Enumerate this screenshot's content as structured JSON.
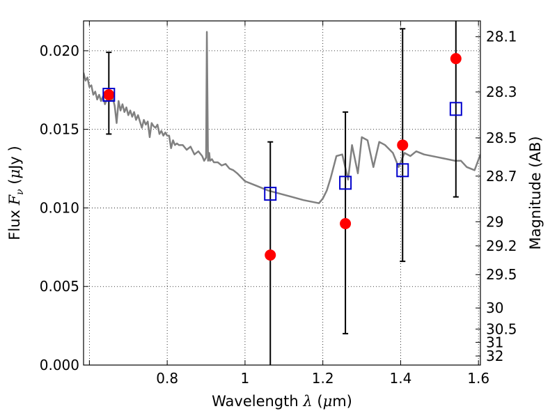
{
  "chart_data": {
    "type": "scatter",
    "xlabel": "Wavelength",
    "xlabel_symbol": "λ",
    "xlabel_unit_open": " (",
    "xlabel_unit_mu": "μ",
    "xlabel_unit_close": "m)",
    "ylabel_prefix": "Flux ",
    "ylabel_symbol": "F",
    "ylabel_sub": "ν",
    "ylabel_unit_open": " (",
    "ylabel_unit_mu": "μ",
    "ylabel_unit_close": "Jy )",
    "y2label": "Magnitude (AB)",
    "xlim": [
      0.585,
      1.605
    ],
    "ylim": [
      0.0,
      0.0219
    ],
    "x_ticks": [
      {
        "value": 0.6,
        "label": ""
      },
      {
        "value": 0.8,
        "label": "0.8"
      },
      {
        "value": 1.0,
        "label": "1"
      },
      {
        "value": 1.2,
        "label": "1.2"
      },
      {
        "value": 1.4,
        "label": "1.4"
      },
      {
        "value": 1.6,
        "label": "1.6"
      }
    ],
    "y_ticks": [
      {
        "value": 0.0,
        "label": "0.000"
      },
      {
        "value": 0.005,
        "label": "0.005"
      },
      {
        "value": 0.01,
        "label": "0.010"
      },
      {
        "value": 0.015,
        "label": "0.015"
      },
      {
        "value": 0.02,
        "label": "0.020"
      }
    ],
    "y2_ticks": [
      {
        "mag": 28.1,
        "label": "28.1"
      },
      {
        "mag": 28.3,
        "label": "28.3"
      },
      {
        "mag": 28.5,
        "label": "28.5"
      },
      {
        "mag": 28.7,
        "label": "28.7"
      },
      {
        "mag": 29,
        "label": "29"
      },
      {
        "mag": 29.2,
        "label": "29.2"
      },
      {
        "mag": 29.5,
        "label": "29.5"
      },
      {
        "mag": 30,
        "label": "30"
      },
      {
        "mag": 30.5,
        "label": "30.5"
      },
      {
        "mag": 31,
        "label": "31"
      },
      {
        "mag": 32,
        "label": "32"
      }
    ],
    "grid": true,
    "series": [
      {
        "type": "line",
        "color": "#808080",
        "x": [
          0.585,
          0.59,
          0.595,
          0.6,
          0.605,
          0.61,
          0.615,
          0.62,
          0.625,
          0.63,
          0.635,
          0.64,
          0.645,
          0.65,
          0.655,
          0.66,
          0.665,
          0.67,
          0.675,
          0.68,
          0.685,
          0.69,
          0.695,
          0.7,
          0.705,
          0.71,
          0.715,
          0.72,
          0.725,
          0.73,
          0.735,
          0.74,
          0.745,
          0.75,
          0.755,
          0.76,
          0.765,
          0.77,
          0.775,
          0.78,
          0.785,
          0.79,
          0.795,
          0.8,
          0.805,
          0.81,
          0.815,
          0.82,
          0.825,
          0.83,
          0.84,
          0.85,
          0.86,
          0.87,
          0.88,
          0.89,
          0.895,
          0.9,
          0.902,
          0.905,
          0.908,
          0.91,
          0.915,
          0.92,
          0.93,
          0.94,
          0.95,
          0.96,
          0.97,
          0.98,
          1.0,
          1.03,
          1.06,
          1.09,
          1.12,
          1.15,
          1.19,
          1.2,
          1.21,
          1.22,
          1.235,
          1.25,
          1.265,
          1.275,
          1.29,
          1.3,
          1.315,
          1.33,
          1.345,
          1.36,
          1.38,
          1.395,
          1.41,
          1.425,
          1.44,
          1.46,
          1.5,
          1.54,
          1.555,
          1.57,
          1.59,
          1.605
        ],
        "y": [
          0.0186,
          0.0181,
          0.0183,
          0.0177,
          0.0178,
          0.0172,
          0.0174,
          0.0169,
          0.0172,
          0.0168,
          0.0171,
          0.0166,
          0.0169,
          0.0173,
          0.0168,
          0.017,
          0.0165,
          0.0154,
          0.0168,
          0.0162,
          0.0166,
          0.0161,
          0.0164,
          0.0159,
          0.0162,
          0.0158,
          0.0161,
          0.0156,
          0.0159,
          0.0155,
          0.0151,
          0.0156,
          0.0153,
          0.0155,
          0.0145,
          0.0154,
          0.0152,
          0.0151,
          0.0153,
          0.0147,
          0.0149,
          0.0146,
          0.0148,
          0.0146,
          0.0146,
          0.0138,
          0.0143,
          0.014,
          0.0141,
          0.014,
          0.014,
          0.0137,
          0.0139,
          0.0134,
          0.0136,
          0.0133,
          0.013,
          0.0132,
          0.0212,
          0.013,
          0.0135,
          0.013,
          0.0131,
          0.0129,
          0.0129,
          0.0127,
          0.0128,
          0.0125,
          0.0124,
          0.0122,
          0.0117,
          0.0114,
          0.0111,
          0.0109,
          0.0107,
          0.0105,
          0.0103,
          0.0106,
          0.0111,
          0.0119,
          0.0133,
          0.0134,
          0.0118,
          0.014,
          0.0122,
          0.0145,
          0.0143,
          0.0126,
          0.0142,
          0.014,
          0.0135,
          0.0126,
          0.0135,
          0.0133,
          0.0136,
          0.0134,
          0.0132,
          0.013,
          0.013,
          0.0126,
          0.0124,
          0.0134
        ]
      },
      {
        "type": "scatter",
        "marker": "circle",
        "color": "#ff0000",
        "x": [
          0.65,
          1.065,
          1.258,
          1.405,
          1.542
        ],
        "y": [
          0.0172,
          0.007,
          0.009,
          0.014,
          0.0195
        ],
        "yerr_low": [
          0.0147,
          -0.001,
          0.002,
          0.0066,
          0.0107
        ],
        "yerr_high": [
          0.0199,
          0.0142,
          0.0161,
          0.0214,
          0.025
        ]
      },
      {
        "type": "scatter",
        "marker": "square-open",
        "color": "#0000cc",
        "x": [
          0.65,
          1.065,
          1.258,
          1.405,
          1.542
        ],
        "y": [
          0.0172,
          0.0109,
          0.0116,
          0.0124,
          0.0163
        ]
      }
    ]
  }
}
